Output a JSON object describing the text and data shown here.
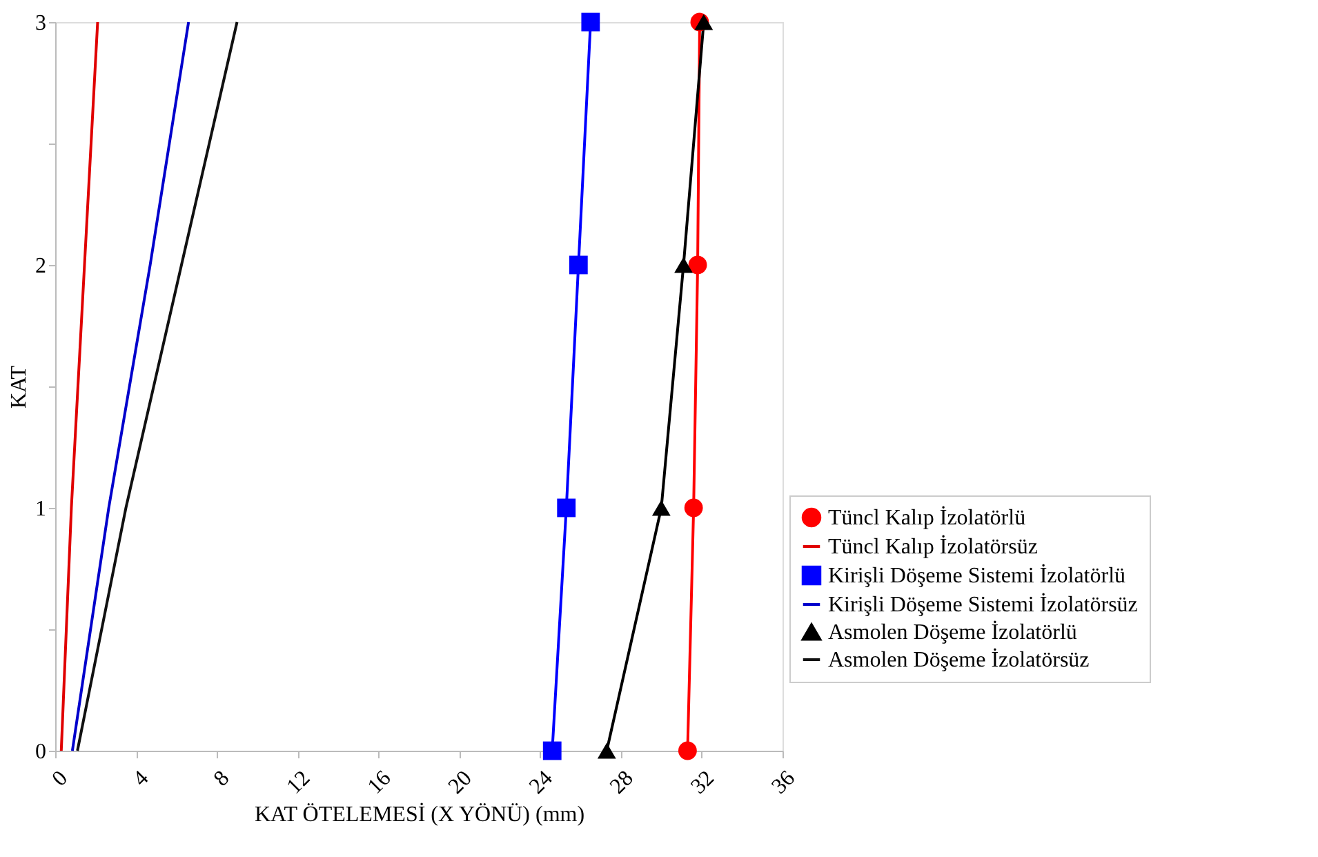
{
  "chart_data": {
    "type": "line",
    "xlabel": "KAT ÖTELEMESİ (X YÖNÜ) (mm)",
    "ylabel": "KAT",
    "xlim": [
      0,
      36
    ],
    "xticks": [
      0,
      4,
      8,
      12,
      16,
      20,
      24,
      28,
      32,
      36
    ],
    "ylim": [
      0,
      3
    ],
    "yticks": [
      0,
      {
        "value": 0.5,
        "label": null
      },
      1,
      {
        "value": 1.5,
        "label": null
      },
      2,
      {
        "value": 2.5,
        "label": null
      },
      3
    ],
    "grid": false,
    "legend": "bottom right",
    "line_style": "solid",
    "series": [
      {
        "name": "Tüncl Kalıp İzolatörlü",
        "color": "#ff0000",
        "marker": "circle",
        "x": [
          31.3,
          31.6,
          31.8,
          31.9
        ],
        "values": [
          0,
          1,
          2,
          3
        ]
      },
      {
        "name": "Tüncl Kalıp İzolatörsüz",
        "color": "#e00000",
        "marker": "none",
        "x": [
          0.3,
          0.8,
          1.45,
          2.1
        ],
        "values": [
          0,
          1,
          2,
          3
        ]
      },
      {
        "name": "Kirişli Döşeme Sistemi İzolatörlü",
        "color": "#0000ff",
        "marker": "square",
        "x": [
          24.6,
          25.3,
          25.9,
          26.5
        ],
        "values": [
          0,
          1,
          2,
          3
        ]
      },
      {
        "name": "Kirişli Döşeme Sistemi İzolatörsüz",
        "color": "#0000cc",
        "marker": "none",
        "x": [
          0.85,
          2.65,
          4.7,
          6.6
        ],
        "values": [
          0,
          1,
          2,
          3
        ]
      },
      {
        "name": "Asmolen Döşeme İzolatörlü",
        "color": "#000000",
        "marker": "triangle",
        "x": [
          27.3,
          30.0,
          31.1,
          32.1
        ],
        "values": [
          0,
          1,
          2,
          3
        ]
      },
      {
        "name": "Asmolen Döşeme İzolatörsüz",
        "color": "#111111",
        "marker": "none",
        "x": [
          1.1,
          3.5,
          6.25,
          9.0
        ],
        "values": [
          0,
          1,
          2,
          3
        ]
      }
    ]
  }
}
